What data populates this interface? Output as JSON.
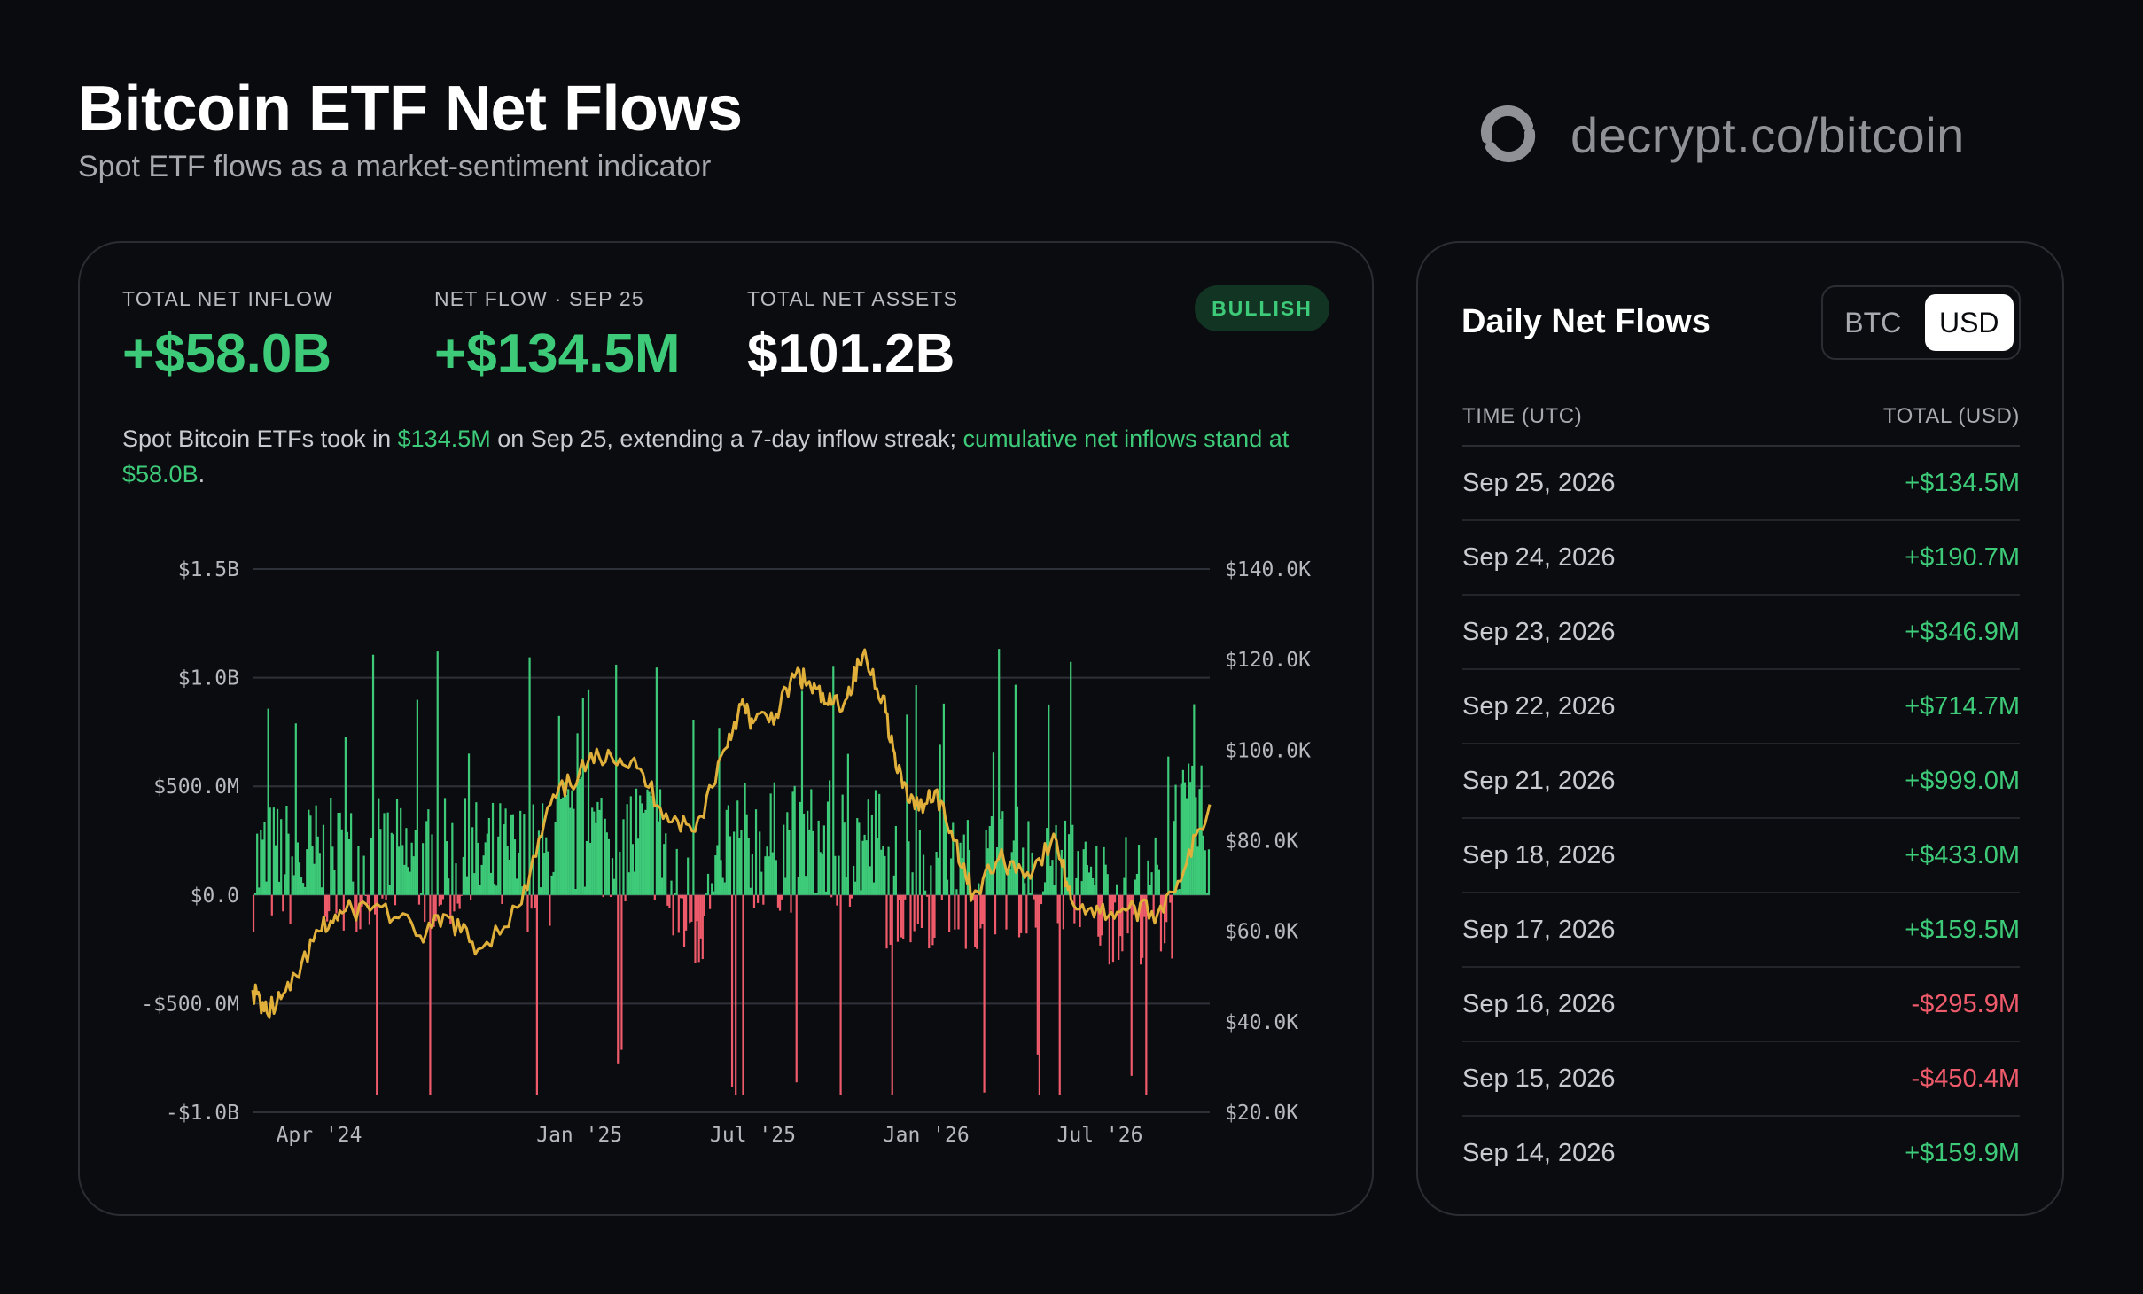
{
  "header": {
    "title": "Bitcoin ETF Net Flows",
    "subtitle": "Spot ETF flows as a market-sentiment indicator",
    "brand": "decrypt.co/bitcoin"
  },
  "colors": {
    "inflow": "#3ecb79",
    "outflow": "#ef5b6b",
    "price_line": "#e0b03b",
    "background": "#0a0b0e"
  },
  "stats": [
    {
      "label": "TOTAL NET INFLOW",
      "value": "+$58.0B"
    },
    {
      "label": "NET FLOW · SEP 25",
      "value": "+$134.5M"
    },
    {
      "label": "TOTAL NET ASSETS",
      "value": "$101.2B"
    }
  ],
  "badge": "BULLISH",
  "summary": {
    "p1": "Spot Bitcoin ETFs took in ",
    "h1": "$134.5M",
    "p2": " on Sep 25, extending a 7-day inflow streak; ",
    "h2": "cumulative net inflows stand at $58.0B",
    "p3": "."
  },
  "chart_data": {
    "type": "bar",
    "series": [
      {
        "name": "",
        "kind": "bar",
        "axis": "left"
      },
      {
        "name": "",
        "kind": "line",
        "axis": "right"
      }
    ],
    "x_ticks": [
      "Apr '24",
      "Jan '25",
      "Jul '25",
      "Jan '26",
      "Jul '26"
    ],
    "x_tick_months": [
      3,
      12,
      18,
      24,
      30
    ],
    "x_range_months": [
      0.7,
      33.8
    ],
    "left_ticks": [
      "$1.5B",
      "$1.0B",
      "$500.0M",
      "$0.0",
      "-$500.0M",
      "-$1.0B"
    ],
    "right_ticks": [
      "$140.0K",
      "$120.0K",
      "$100.0K",
      "$80.0K",
      "$60.0K",
      "$40.0K",
      "$20.0K"
    ],
    "ylim_left": [
      -1000,
      1500
    ],
    "ylim_right": [
      20000,
      140000
    ],
    "grid": true,
    "price_anchors": [
      [
        0.7,
        47000
      ],
      [
        1.2,
        42000
      ],
      [
        2.0,
        47000
      ],
      [
        3.0,
        60000
      ],
      [
        3.8,
        64000
      ],
      [
        5.0,
        66000
      ],
      [
        6.5,
        59000
      ],
      [
        7.5,
        63000
      ],
      [
        8.5,
        56000
      ],
      [
        10.0,
        66000
      ],
      [
        11.0,
        88000
      ],
      [
        12.0,
        95000
      ],
      [
        13.0,
        100000
      ],
      [
        14.0,
        96000
      ],
      [
        15.0,
        86000
      ],
      [
        16.0,
        82000
      ],
      [
        17.0,
        100000
      ],
      [
        17.6,
        110000
      ],
      [
        18.0,
        106000
      ],
      [
        18.8,
        108000
      ],
      [
        19.5,
        117000
      ],
      [
        20.0,
        114000
      ],
      [
        20.6,
        110000
      ],
      [
        21.2,
        111000
      ],
      [
        21.8,
        121000
      ],
      [
        22.5,
        112000
      ],
      [
        23.0,
        95000
      ],
      [
        23.6,
        87000
      ],
      [
        24.3,
        91000
      ],
      [
        25.0,
        80000
      ],
      [
        25.6,
        68000
      ],
      [
        26.5,
        76000
      ],
      [
        27.5,
        73000
      ],
      [
        28.5,
        80000
      ],
      [
        29.0,
        67000
      ],
      [
        30.0,
        64000
      ],
      [
        31.0,
        65000
      ],
      [
        32.0,
        64000
      ],
      [
        33.0,
        75000
      ],
      [
        33.8,
        88000
      ]
    ]
  },
  "daily_flows": {
    "title": "Daily Net Flows",
    "toggle": [
      "BTC",
      "USD"
    ],
    "active_toggle": "USD",
    "columns": [
      "TIME (UTC)",
      "TOTAL (USD)"
    ],
    "rows": [
      {
        "date": "Sep 25, 2026",
        "value": "+$134.5M",
        "sign": "pos"
      },
      {
        "date": "Sep 24, 2026",
        "value": "+$190.7M",
        "sign": "pos"
      },
      {
        "date": "Sep 23, 2026",
        "value": "+$346.9M",
        "sign": "pos"
      },
      {
        "date": "Sep 22, 2026",
        "value": "+$714.7M",
        "sign": "pos"
      },
      {
        "date": "Sep 21, 2026",
        "value": "+$999.0M",
        "sign": "pos"
      },
      {
        "date": "Sep 18, 2026",
        "value": "+$433.0M",
        "sign": "pos"
      },
      {
        "date": "Sep 17, 2026",
        "value": "+$159.5M",
        "sign": "pos"
      },
      {
        "date": "Sep 16, 2026",
        "value": "-$295.9M",
        "sign": "neg"
      },
      {
        "date": "Sep 15, 2026",
        "value": "-$450.4M",
        "sign": "neg"
      },
      {
        "date": "Sep 14, 2026",
        "value": "+$159.9M",
        "sign": "pos"
      }
    ]
  }
}
